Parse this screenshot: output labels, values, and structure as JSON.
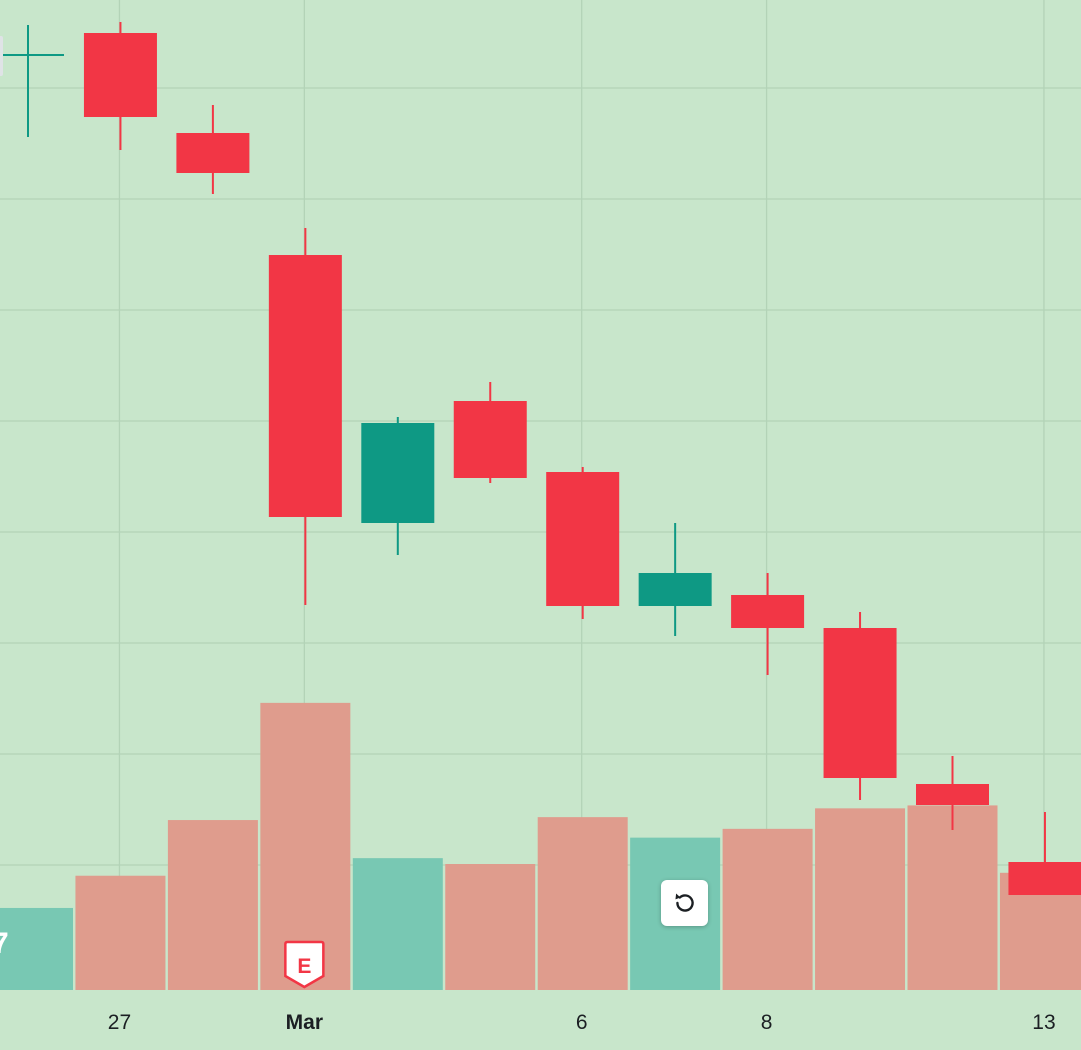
{
  "chart_data": {
    "type": "candlestick",
    "colors": {
      "background": "#c8e6cb",
      "grid": "#b3d3b7",
      "up": "#0e9984",
      "down": "#f23645",
      "volume_up": "#78c8b3",
      "volume_down": "#df9c8d",
      "axis_text": "#1b1f23"
    },
    "price_range": [
      0,
      1045
    ],
    "volume_max": 100,
    "x_tick_labels": [
      {
        "label": "27",
        "index": 1,
        "bold": false
      },
      {
        "label": "Mar",
        "index": 3,
        "bold": true
      },
      {
        "label": "6",
        "index": 6,
        "bold": false
      },
      {
        "label": "8",
        "index": 8,
        "bold": false
      },
      {
        "label": "13",
        "index": 11,
        "bold": false
      }
    ],
    "candles": [
      {
        "open": 990,
        "high": 1020,
        "low": 908,
        "close": 990,
        "volume": 28
      },
      {
        "open": 1012,
        "high": 1023,
        "low": 895,
        "close": 928,
        "volume": 39
      },
      {
        "open": 912,
        "high": 940,
        "low": 851,
        "close": 872,
        "volume": 58
      },
      {
        "open": 790,
        "high": 817,
        "low": 440,
        "close": 528,
        "volume": 98
      },
      {
        "open": 522,
        "high": 628,
        "low": 490,
        "close": 622,
        "volume": 45
      },
      {
        "open": 644,
        "high": 663,
        "low": 562,
        "close": 567,
        "volume": 43
      },
      {
        "open": 573,
        "high": 578,
        "low": 426,
        "close": 439,
        "volume": 59
      },
      {
        "open": 439,
        "high": 522,
        "low": 409,
        "close": 472,
        "volume": 52
      },
      {
        "open": 450,
        "high": 472,
        "low": 370,
        "close": 417,
        "volume": 55
      },
      {
        "open": 417,
        "high": 433,
        "low": 245,
        "close": 267,
        "volume": 62
      },
      {
        "open": 261,
        "high": 289,
        "low": 215,
        "close": 240,
        "volume": 63
      },
      {
        "open": 183,
        "high": 233,
        "low": 150,
        "close": 150,
        "volume": 40
      }
    ]
  },
  "markers": {
    "earnings_label": "E",
    "earnings_color": "#f23645",
    "earnings_index": 3
  },
  "controls": {
    "reset_icon": "rotate-ccw-icon"
  },
  "edge_label": "7"
}
